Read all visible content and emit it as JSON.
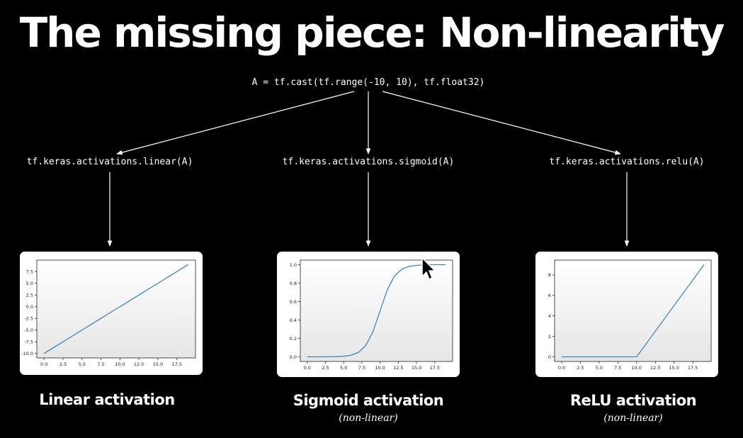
{
  "slide": {
    "title": "The missing piece: Non-linearity",
    "input_code": "A = tf.cast(tf.range(-10, 10), tf.float32)"
  },
  "panels": [
    {
      "code": "tf.keras.activations.linear(A)",
      "caption": "Linear activation",
      "subcaption": ""
    },
    {
      "code": "tf.keras.activations.sigmoid(A)",
      "caption": "Sigmoid activation",
      "subcaption": "(non-linear)"
    },
    {
      "code": "tf.keras.activations.relu(A)",
      "caption": "ReLU activation",
      "subcaption": "(non-linear)"
    }
  ],
  "chart_data": [
    {
      "type": "line",
      "x": [
        0,
        1,
        2,
        3,
        4,
        5,
        6,
        7,
        8,
        9,
        10,
        11,
        12,
        13,
        14,
        15,
        16,
        17,
        18,
        19
      ],
      "series": [
        {
          "values": [
            -10,
            -9,
            -8,
            -7,
            -6,
            -5,
            -4,
            -3,
            -2,
            -1,
            0,
            1,
            2,
            3,
            4,
            5,
            6,
            7,
            8,
            9
          ]
        }
      ],
      "xlim": [
        -0.95,
        19.95
      ],
      "ylim": [
        -10.95,
        9.95
      ],
      "xticks": [
        "0.0",
        "2.5",
        "5.0",
        "7.5",
        "10.0",
        "12.5",
        "15.0",
        "17.5"
      ],
      "yticks": [
        "7.5",
        "5.0",
        "2.5",
        "0.0",
        "-2.5",
        "-5.0",
        "-7.5",
        "-10.0"
      ],
      "line_color": "#1f77b4"
    },
    {
      "type": "line",
      "x": [
        0,
        1,
        2,
        3,
        4,
        5,
        6,
        7,
        8,
        9,
        10,
        11,
        12,
        13,
        14,
        15,
        16,
        17,
        18,
        19
      ],
      "series": [
        {
          "values": [
            5e-05,
            0.0001,
            0.0003,
            0.0009,
            0.0025,
            0.0067,
            0.018,
            0.047,
            0.119,
            0.269,
            0.5,
            0.731,
            0.881,
            0.953,
            0.982,
            0.993,
            0.998,
            0.999,
            1.0,
            1.0
          ]
        }
      ],
      "xlim": [
        -0.95,
        19.95
      ],
      "ylim": [
        -0.05,
        1.05
      ],
      "xticks": [
        "0.0",
        "2.5",
        "5.0",
        "7.5",
        "10.0",
        "12.5",
        "15.0",
        "17.5"
      ],
      "yticks": [
        "1.0",
        "0.8",
        "0.6",
        "0.4",
        "0.2",
        "0.0"
      ],
      "line_color": "#1f77b4"
    },
    {
      "type": "line",
      "x": [
        0,
        1,
        2,
        3,
        4,
        5,
        6,
        7,
        8,
        9,
        10,
        11,
        12,
        13,
        14,
        15,
        16,
        17,
        18,
        19
      ],
      "series": [
        {
          "values": [
            0,
            0,
            0,
            0,
            0,
            0,
            0,
            0,
            0,
            0,
            0,
            1,
            2,
            3,
            4,
            5,
            6,
            7,
            8,
            9
          ]
        }
      ],
      "xlim": [
        -0.95,
        19.95
      ],
      "ylim": [
        -0.45,
        9.45
      ],
      "xticks": [
        "0.0",
        "2.5",
        "5.0",
        "7.5",
        "10.0",
        "12.5",
        "15.0",
        "17.5"
      ],
      "yticks": [
        "8",
        "6",
        "4",
        "2",
        "0"
      ],
      "line_color": "#1f77b4"
    }
  ]
}
